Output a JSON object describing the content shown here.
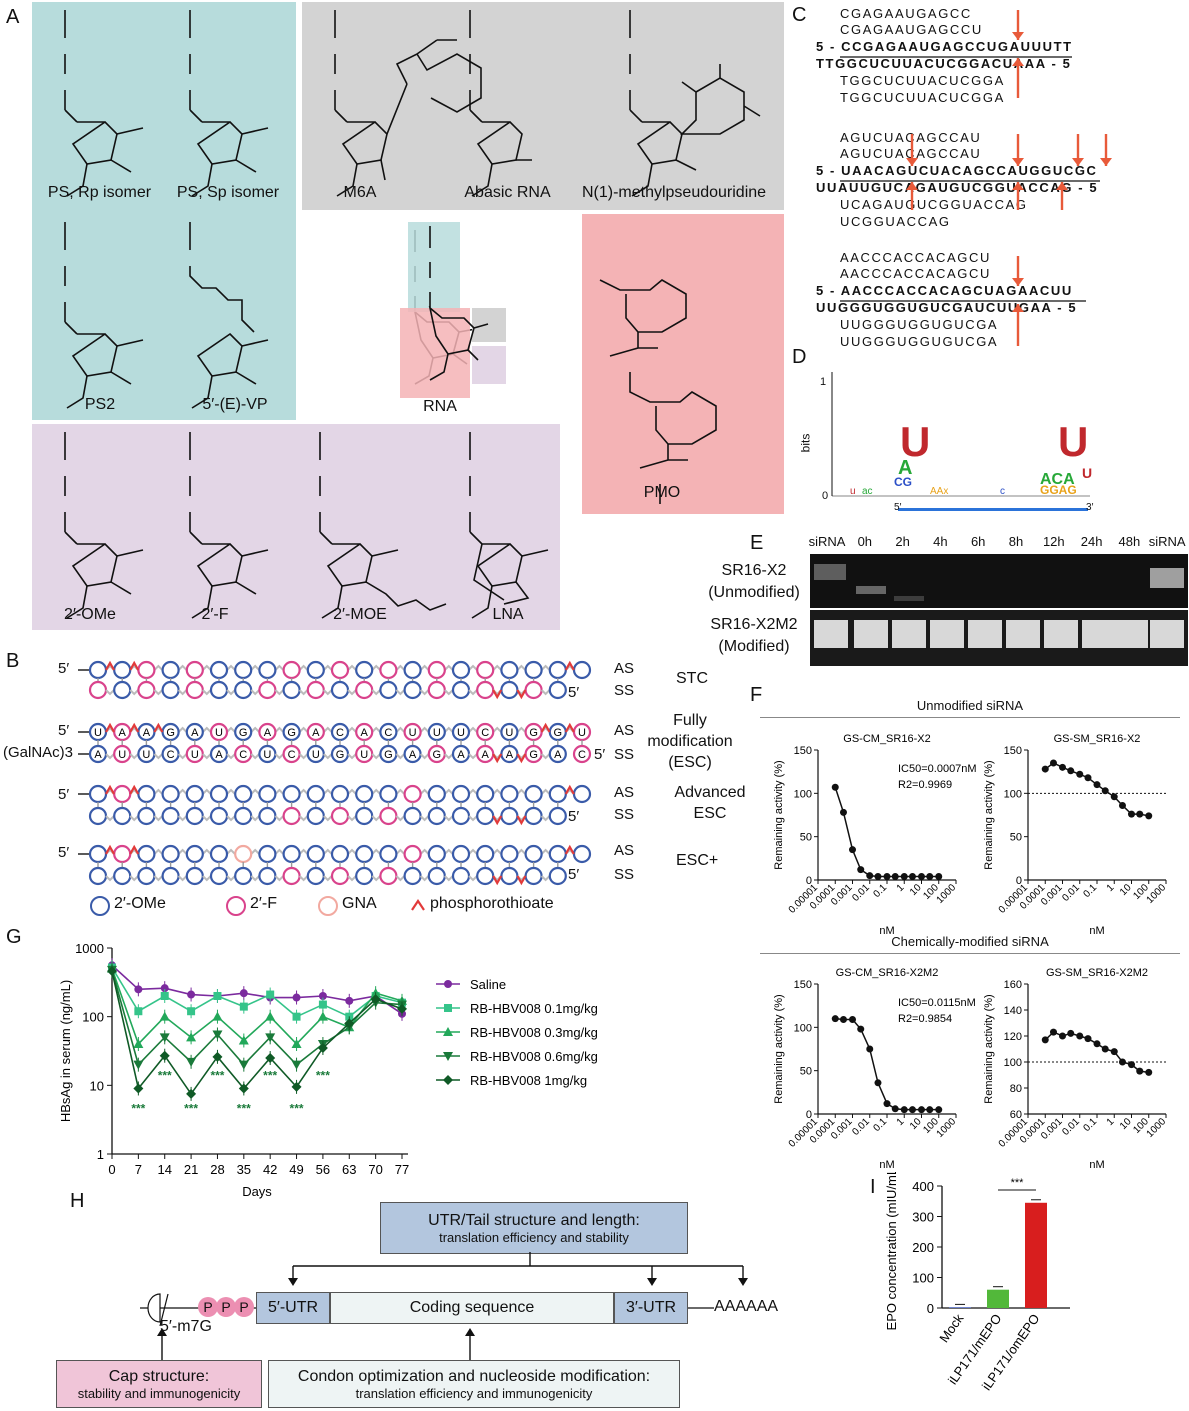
{
  "panels": {
    "A": "A",
    "B": "B",
    "C": "C",
    "D": "D",
    "E": "E",
    "F": "F",
    "G": "G",
    "H": "H",
    "I": "I"
  },
  "panelA": {
    "chem": [
      "PS, Rp isomer",
      "PS, Sp isomer",
      "M6A",
      "Abasic RNA",
      "N(1)-methylpseudouridine",
      "PS2",
      "5′-(E)-VP",
      "RNA",
      "PMO",
      "2′-OMe",
      "2′-F",
      "2′-MOE",
      "LNA"
    ],
    "colors": {
      "teal": "#b7dcdc",
      "grey": "#d3d3d3",
      "pink": "#f4b3b5",
      "lavender": "#e3d6e6"
    }
  },
  "panelB": {
    "rows": [
      {
        "left": "5′",
        "label1": "AS",
        "label2": "SS",
        "ss_end": "5′",
        "name": "STC"
      },
      {
        "left": "5′",
        "left2": "(GalNAc)3",
        "label1": "AS",
        "label2": "SS",
        "ss_end": "5′",
        "name": "Fully modification (ESC)",
        "as_seq": [
          "U",
          "A",
          "A",
          "G",
          "A",
          "U",
          "G",
          "A",
          "G",
          "A",
          "C",
          "A",
          "C",
          "U",
          "U",
          "U",
          "C",
          "U",
          "G",
          "G",
          "U"
        ],
        "ss_seq": [
          "A",
          "U",
          "U",
          "C",
          "U",
          "A",
          "C",
          "U",
          "C",
          "U",
          "G",
          "U",
          "G",
          "A",
          "G",
          "A",
          "A",
          "A",
          "G",
          "A",
          "C"
        ]
      },
      {
        "left": "5′",
        "label1": "AS",
        "label2": "SS",
        "ss_end": "5′",
        "name": "Advanced ESC"
      },
      {
        "left": "5′",
        "label1": "AS",
        "label2": "SS",
        "ss_end": "5′",
        "name": "ESC+"
      }
    ],
    "legend": [
      "2′-OMe",
      "2′-F",
      "GNA",
      "phosphorothioate"
    ],
    "colors": {
      "ome": "#3a5ba9",
      "f": "#d9438c",
      "gna": "#f2a9a0",
      "ps": "#e23a3a"
    }
  },
  "panelC": {
    "blocks": [
      {
        "top": [
          "CGAGAAUGAGCC",
          "CGAGAAUGAGCCU"
        ],
        "s5": "5 - ",
        "strand1": "CCGAGAAUGAGCCUGAUUUTT",
        "strand2": "TTGGCUCUUACUCGGACUAAA",
        "s3": " - 5",
        "bottom": [
          "TGGCUCUUACUCGGA",
          "TGGCUCUUACUCGGA"
        ]
      },
      {
        "top": [
          "AGUCUACAGCCAU",
          "AGUCUACAGCCAU"
        ],
        "s5": "5 - ",
        "strand1": "UAACAGUCUACAGCCAUGGUCGC",
        "strand2": "UUAUUGUCAGAUGUCGGUACCAG",
        "s3": " - 5",
        "bottom": [
          "UCAGAUGUCGGUACCAG",
          "UCGGUACCAG"
        ]
      },
      {
        "top": [
          "AACCCACCACAGCU",
          "AACCCACCACAGCU"
        ],
        "s5": "5 - ",
        "strand1": "AACCCACCACAGCUAGAACUU",
        "strand2": "UUGGGUGGUGUCGAUCUUGAA",
        "s3": " - 5",
        "bottom": [
          "UUGGGUGGUGUCGA",
          "UUGGGUGGUGUCGA"
        ]
      }
    ]
  },
  "panelD": {
    "ylabel": "bits",
    "y1": "1",
    "y0": "0",
    "x5": "5′",
    "x3": "3′"
  },
  "panelE": {
    "lanes": [
      "siRNA",
      "0h",
      "2h",
      "4h",
      "6h",
      "8h",
      "12h",
      "24h",
      "48h",
      "siRNA"
    ],
    "row1": "SR16-X2",
    "row1b": "(Unmodified)",
    "row2": "SR16-X2M2",
    "row2b": "(Modified)"
  },
  "panelF": {
    "group1": "Unmodified siRNA",
    "group2": "Chemically-modified siRNA",
    "ylabel": "Remaining activity (%)",
    "xlabel": "nM",
    "chart_data": [
      {
        "type": "line",
        "title": "GS-CM_SR16-X2",
        "annotation1": "IC50=0.0007nM",
        "annotation2": "R2=0.9969",
        "x": [
          0.0001,
          0.0003,
          0.001,
          0.003,
          0.01,
          0.03,
          0.1,
          0.3,
          1,
          3,
          10,
          30,
          100
        ],
        "y": [
          107,
          78,
          35,
          12,
          5,
          4,
          4,
          4,
          4,
          4,
          4,
          4,
          4
        ],
        "ylim": [
          0,
          150
        ],
        "yticks": [
          "0",
          "50",
          "100",
          "150"
        ],
        "xticks": [
          "0.00001",
          "0.0001",
          "0.001",
          "0.01",
          "0.1",
          "1",
          "10",
          "100",
          "1000"
        ]
      },
      {
        "type": "line",
        "title": "GS-SM_SR16-X2",
        "x": [
          0.0001,
          0.0003,
          0.001,
          0.003,
          0.01,
          0.03,
          0.1,
          0.3,
          1,
          3,
          10,
          30,
          100
        ],
        "y": [
          128,
          135,
          130,
          126,
          122,
          118,
          110,
          103,
          96,
          86,
          76,
          76,
          74
        ],
        "ylim": [
          0,
          150
        ],
        "yticks": [
          "0",
          "50",
          "100",
          "150"
        ],
        "xticks": [
          "0.00001",
          "0.0001",
          "0.001",
          "0.01",
          "0.1",
          "1",
          "10",
          "100",
          "1000"
        ],
        "dotted": 100
      },
      {
        "type": "line",
        "title": "GS-CM_SR16-X2M2",
        "annotation1": "IC50=0.0115nM",
        "annotation2": "R2=0.9854",
        "x": [
          0.0001,
          0.0003,
          0.001,
          0.003,
          0.01,
          0.03,
          0.1,
          0.3,
          1,
          3,
          10,
          30,
          100
        ],
        "y": [
          110,
          109,
          109,
          98,
          75,
          36,
          12,
          6,
          5,
          5,
          5,
          5,
          5
        ],
        "ylim": [
          0,
          150
        ],
        "yticks": [
          "0",
          "50",
          "100",
          "150"
        ],
        "xticks": [
          "0.00001",
          "0.0001",
          "0.001",
          "0.01",
          "0.1",
          "1",
          "10",
          "100",
          "1000"
        ]
      },
      {
        "type": "line",
        "title": "GS-SM_SR16-X2M2",
        "x": [
          0.0001,
          0.0003,
          0.001,
          0.003,
          0.01,
          0.03,
          0.1,
          0.3,
          1,
          3,
          10,
          30,
          100
        ],
        "y": [
          117,
          123,
          120,
          122,
          120,
          118,
          114,
          110,
          108,
          100,
          98,
          93,
          92
        ],
        "ylim": [
          60,
          160
        ],
        "yticks": [
          "60",
          "80",
          "100",
          "120",
          "140",
          "160"
        ],
        "xticks": [
          "0.00001",
          "0.0001",
          "0.001",
          "0.01",
          "0.1",
          "1",
          "10",
          "100",
          "1000"
        ],
        "dotted": 100
      }
    ]
  },
  "panelG": {
    "chart_data": {
      "type": "line",
      "xlabel": "Days",
      "ylabel": "HBsAg in serum (ng/mL)",
      "xticks": [
        "0",
        "7",
        "14",
        "21",
        "28",
        "35",
        "42",
        "49",
        "56",
        "63",
        "70",
        "77"
      ],
      "yticks": [
        "1",
        "10",
        "100",
        "1000"
      ],
      "x": [
        0,
        7,
        14,
        21,
        28,
        35,
        42,
        49,
        56,
        63,
        70,
        77
      ],
      "series": [
        {
          "name": "Saline",
          "color": "#7b2a9e",
          "marker": "circle",
          "values": [
            560,
            250,
            260,
            210,
            200,
            220,
            190,
            190,
            200,
            170,
            200,
            110
          ]
        },
        {
          "name": "RB-HBV008 0.1mg/kg",
          "color": "#35c48a",
          "marker": "square",
          "values": [
            520,
            120,
            200,
            120,
            200,
            140,
            210,
            100,
            150,
            100,
            200,
            160
          ]
        },
        {
          "name": "RB-HBV008 0.3mg/kg",
          "color": "#22a85a",
          "marker": "triangle-up",
          "values": [
            500,
            40,
            100,
            50,
            100,
            45,
            100,
            40,
            100,
            70,
            220,
            170
          ]
        },
        {
          "name": "RB-HBV008 0.6mg/kg",
          "color": "#1a7a3a",
          "marker": "triangle-down",
          "values": [
            480,
            20,
            50,
            22,
            55,
            20,
            50,
            20,
            40,
            70,
            160,
            150
          ]
        },
        {
          "name": "RB-HBV008 1mg/kg",
          "color": "#0f5a26",
          "marker": "diamond",
          "values": [
            460,
            9,
            27,
            7.5,
            26,
            9,
            25,
            9.5,
            35,
            80,
            180,
            130
          ]
        }
      ],
      "stars": "***"
    }
  },
  "panelH": {
    "utr_title": "UTR/Tail structure and length:",
    "utr_sub": "translation efficiency and stability",
    "ppp": [
      "P",
      "P",
      "P"
    ],
    "cap": "5′-m7G",
    "utr5": "5′-UTR",
    "coding": "Coding sequence",
    "utr3": "3′-UTR",
    "tail": "AAAAAA",
    "cap_title": "Cap structure:",
    "cap_sub": "stability and immunogenicity",
    "codon_title": "Condon optimization and nucleoside modification:",
    "codon_sub": "translation efficiency and immunogenicity"
  },
  "panelI": {
    "chart_data": {
      "type": "bar",
      "categories": [
        "Mock",
        "iLP171/mEPO",
        "iLP171/omEPO"
      ],
      "values": [
        2,
        60,
        345
      ],
      "colors": [
        "#3b5bd6",
        "#52b83a",
        "#d81e1e"
      ],
      "ylabel": "EPO concentration (mIU/mL)",
      "ylim": [
        0,
        400
      ],
      "yticks": [
        "0",
        "100",
        "200",
        "300",
        "400"
      ],
      "sig": "***"
    }
  }
}
